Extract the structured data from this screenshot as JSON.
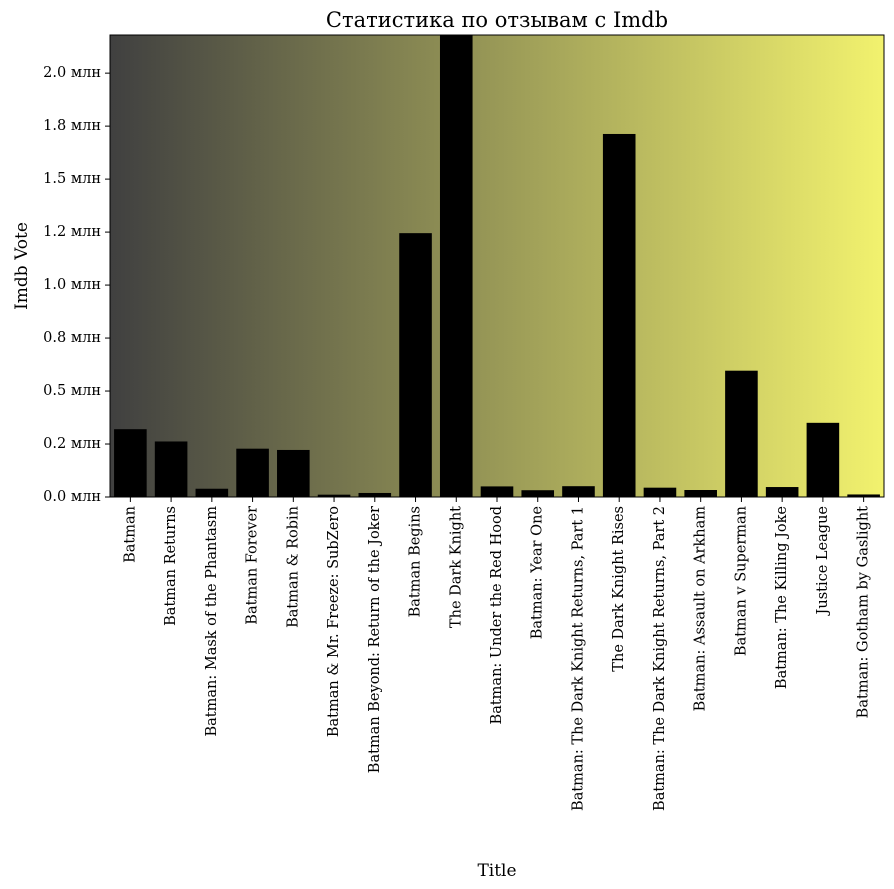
{
  "chart_data": {
    "type": "bar",
    "title": "Статистика по отзывам с Imdb",
    "xlabel": "Title",
    "ylabel": "Imdb Vote",
    "ylim": [
      0,
      2180000
    ],
    "y_ticks": [
      {
        "value": 0,
        "label": "0.0 млн"
      },
      {
        "value": 250000,
        "label": "0.2 млн"
      },
      {
        "value": 500000,
        "label": "0.5 млн"
      },
      {
        "value": 750000,
        "label": "0.8 млн"
      },
      {
        "value": 1000000,
        "label": "1.0 млн"
      },
      {
        "value": 1250000,
        "label": "1.2 млн"
      },
      {
        "value": 1500000,
        "label": "1.5 млн"
      },
      {
        "value": 1750000,
        "label": "1.8 млн"
      },
      {
        "value": 2000000,
        "label": "2.0 млн"
      }
    ],
    "categories": [
      "Batman",
      "Batman Returns",
      "Batman: Mask of the Phantasm",
      "Batman Forever",
      "Batman & Robin",
      "Batman & Mr. Freeze: SubZero",
      "Batman Beyond: Return of the Joker",
      "Batman Begins",
      "The Dark Knight",
      "Batman: Under the Red Hood",
      "Batman: Year One",
      "Batman: The Dark Knight Returns, Part 1",
      "The Dark Knight Rises",
      "Batman: The Dark Knight Returns, Part 2",
      "Batman: Assault on Arkham",
      "Batman v Superman",
      "Batman: The Killing Joke",
      "Justice League",
      "Batman: Gotham by Gaslight"
    ],
    "values": [
      320000,
      262000,
      39000,
      228000,
      222000,
      11000,
      19000,
      1245000,
      2180000,
      50000,
      32000,
      51000,
      1713000,
      44000,
      33000,
      596000,
      47000,
      350000,
      12000
    ],
    "colors": {
      "bar": "#000000",
      "background_start": "#404040",
      "background_end": "#f2f26e"
    },
    "grid": false,
    "legend": "none"
  }
}
